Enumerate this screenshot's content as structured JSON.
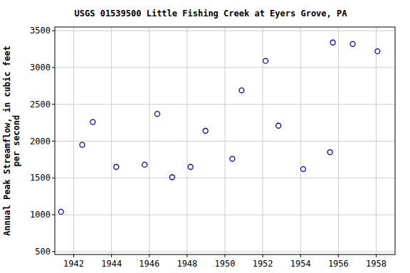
{
  "chart_data": {
    "type": "scatter",
    "title": "USGS 01539500 Little Fishing Creek at Eyers Grove, PA",
    "ylabel": "Annual Peak Streamflow, in cubic feet per second",
    "x": [
      1941.33,
      1942.45,
      1943.01,
      1944.25,
      1945.75,
      1946.42,
      1947.21,
      1948.18,
      1948.97,
      1950.39,
      1950.88,
      1952.15,
      1952.83,
      1954.14,
      1955.56,
      1955.71,
      1956.76,
      1958.07
    ],
    "values": [
      1040,
      1950,
      2260,
      1650,
      1680,
      2370,
      1510,
      1650,
      2140,
      1760,
      2690,
      3090,
      2210,
      1620,
      1850,
      3340,
      3320,
      3220
    ],
    "color": "#0000cc",
    "marker": "open-circle",
    "xlim": [
      1941,
      1959
    ],
    "xticks": [
      1942,
      1944,
      1946,
      1948,
      1950,
      1952,
      1954,
      1956,
      1958
    ],
    "ylim": [
      460,
      3550
    ],
    "yticks": [
      500,
      1000,
      1500,
      2000,
      2500,
      3000,
      3500
    ],
    "grid": true
  }
}
